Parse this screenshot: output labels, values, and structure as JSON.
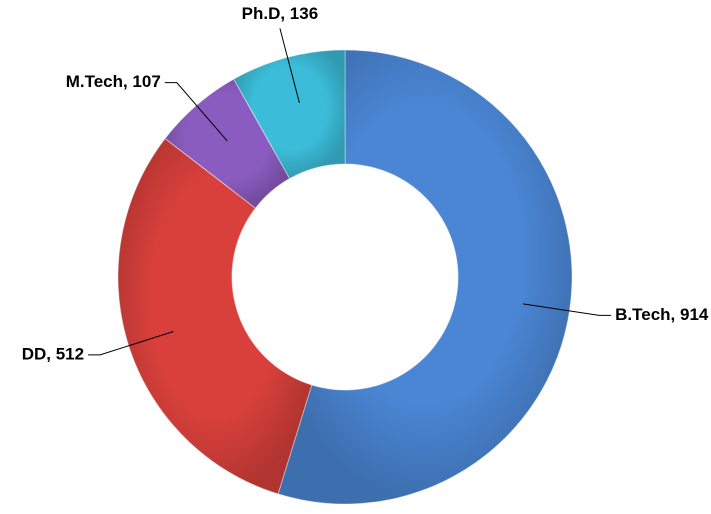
{
  "chart_data": {
    "type": "donut",
    "categories": [
      "B.Tech",
      "DD",
      "M.Tech",
      "Ph.D"
    ],
    "values": [
      914,
      512,
      107,
      136
    ],
    "value_labels": [
      "B.Tech, 914",
      "DD, 512",
      "M.Tech, 107",
      "Ph.D, 136"
    ],
    "colors": [
      "#4a86d4",
      "#d9403b",
      "#8a5cc0",
      "#3bbcd8"
    ]
  }
}
